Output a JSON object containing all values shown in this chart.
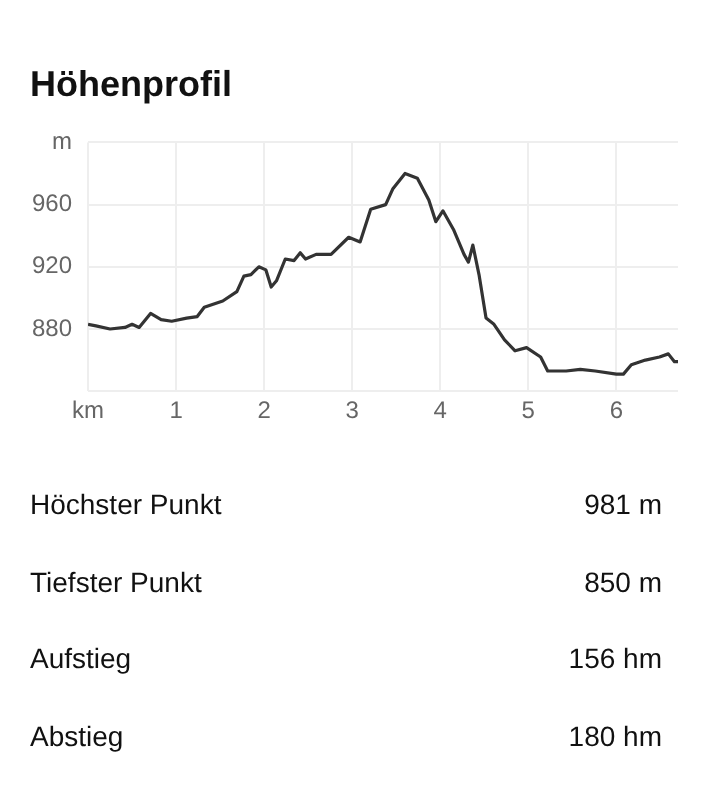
{
  "chart_data": {
    "type": "line",
    "title": "Höhenprofil",
    "x": [
      0,
      0.09,
      0.25,
      0.42,
      0.5,
      0.58,
      0.71,
      0.83,
      0.95,
      1.12,
      1.24,
      1.32,
      1.53,
      1.69,
      1.77,
      1.85,
      1.94,
      2.02,
      2.08,
      2.14,
      2.24,
      2.34,
      2.41,
      2.47,
      2.59,
      2.76,
      2.96,
      3.09,
      3.21,
      3.38,
      3.46,
      3.6,
      3.74,
      3.87,
      3.95,
      4.03,
      4.15,
      4.27,
      4.32,
      4.37,
      4.44,
      4.52,
      4.61,
      4.73,
      4.85,
      4.98,
      5.14,
      5.22,
      5.43,
      5.59,
      5.76,
      6.0,
      6.08,
      6.17,
      6.33,
      6.49,
      6.59,
      6.66,
      6.7
    ],
    "series": [
      {
        "color": "#333333",
        "values": [
          883,
          882,
          880,
          881,
          883,
          881,
          890,
          886,
          885,
          887,
          888,
          894,
          898,
          904,
          914,
          915,
          920,
          918,
          907,
          911,
          925,
          924,
          929,
          925,
          928,
          928,
          939,
          936,
          957,
          960,
          970,
          980,
          977,
          963,
          949,
          956,
          944,
          928,
          923,
          934,
          915,
          887,
          883,
          873,
          866,
          868,
          862,
          853,
          853,
          854,
          853,
          851,
          851,
          857,
          860,
          862,
          864,
          859,
          859
        ]
      }
    ],
    "xlim": [
      0,
      6.7
    ],
    "ylim": [
      840,
      1000
    ],
    "xticks": [
      {
        "value": 0,
        "label": "km"
      },
      1,
      2,
      3,
      4,
      5,
      6
    ],
    "yticks": [
      {
        "value": 840,
        "label": null
      },
      880,
      920,
      960,
      {
        "value": 1000,
        "label": "m"
      }
    ],
    "grid": true,
    "legend": false,
    "marker": "none",
    "line_style": "solid",
    "annotations": [
      "Höchster Punkt",
      "981 m",
      "Tiefster Punkt",
      "850 m",
      "Aufstieg",
      "156 hm",
      "Abstieg",
      "180 hm"
    ]
  }
}
